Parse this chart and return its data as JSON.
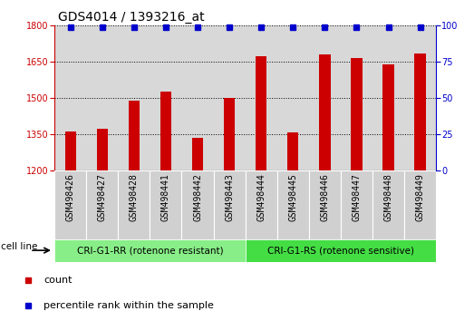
{
  "title": "GDS4014 / 1393216_at",
  "samples": [
    "GSM498426",
    "GSM498427",
    "GSM498428",
    "GSM498441",
    "GSM498442",
    "GSM498443",
    "GSM498444",
    "GSM498445",
    "GSM498446",
    "GSM498447",
    "GSM498448",
    "GSM498449"
  ],
  "counts": [
    1360,
    1370,
    1490,
    1525,
    1335,
    1500,
    1675,
    1355,
    1680,
    1665,
    1640,
    1685
  ],
  "percentile_ranks": [
    99,
    99,
    99,
    99,
    99,
    99,
    99,
    99,
    99,
    99,
    99,
    99
  ],
  "bar_color": "#cc0000",
  "dot_color": "#0000cc",
  "ylim_left": [
    1200,
    1800
  ],
  "ylim_right": [
    0,
    100
  ],
  "yticks_left": [
    1200,
    1350,
    1500,
    1650,
    1800
  ],
  "yticks_right": [
    0,
    25,
    50,
    75,
    100
  ],
  "group1_label": "CRI-G1-RR (rotenone resistant)",
  "group2_label": "CRI-G1-RS (rotenone sensitive)",
  "group1_count": 6,
  "group2_count": 6,
  "cell_line_label": "cell line",
  "legend_count_label": "count",
  "legend_percentile_label": "percentile rank within the sample",
  "plot_bg_color": "#d8d8d8",
  "group1_bg": "#88ee88",
  "group2_bg": "#44dd44",
  "tick_box_bg": "#d0d0d0",
  "title_fontsize": 10,
  "tick_fontsize": 7,
  "label_fontsize": 8,
  "bar_width": 0.35
}
